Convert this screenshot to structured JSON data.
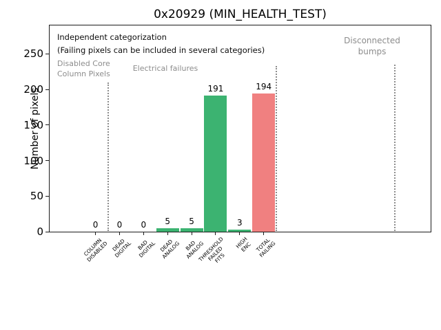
{
  "chart_data": {
    "type": "bar",
    "title": "0x20929 (MIN_HEALTH_TEST)",
    "ylabel": "Number of pixels",
    "categories": [
      "COLUMN\nDISABLED",
      "DEAD\nDIGITAL",
      "BAD\nDIGITAL",
      "DEAD\nANALOG",
      "BAD\nANALOG",
      "THRESHOLD\nFAILED\nFITS",
      "HIGH\nENC",
      "TOTAL\nFAILING"
    ],
    "values": [
      0,
      0,
      0,
      5,
      5,
      191,
      3,
      194
    ],
    "value_labels": [
      "0",
      "0",
      "0",
      "5",
      "5",
      "191",
      "3",
      "194"
    ],
    "bar_colors": [
      "#3CB371",
      "#3CB371",
      "#3CB371",
      "#3CB371",
      "#3CB371",
      "#3CB371",
      "#3CB371",
      "#F08080"
    ],
    "ylim": [
      0,
      290
    ],
    "yticks": [
      0,
      50,
      100,
      150,
      200,
      250
    ],
    "grid": false,
    "legend_position": "none",
    "notes": [
      "Independent categorization",
      "(Failing pixels can be included in several categories)"
    ],
    "sections": [
      {
        "label": "Disabled Core\nColumn Pixels"
      },
      {
        "label": "Electrical failures"
      },
      {
        "label": "Disconnected\nbumps"
      }
    ],
    "colors": {
      "green_bar": "#3CB371",
      "red_bar": "#F08080",
      "section_text": "#8c8c8c",
      "divider": "#8c8c8c",
      "axis": "#1a1a1a"
    }
  }
}
